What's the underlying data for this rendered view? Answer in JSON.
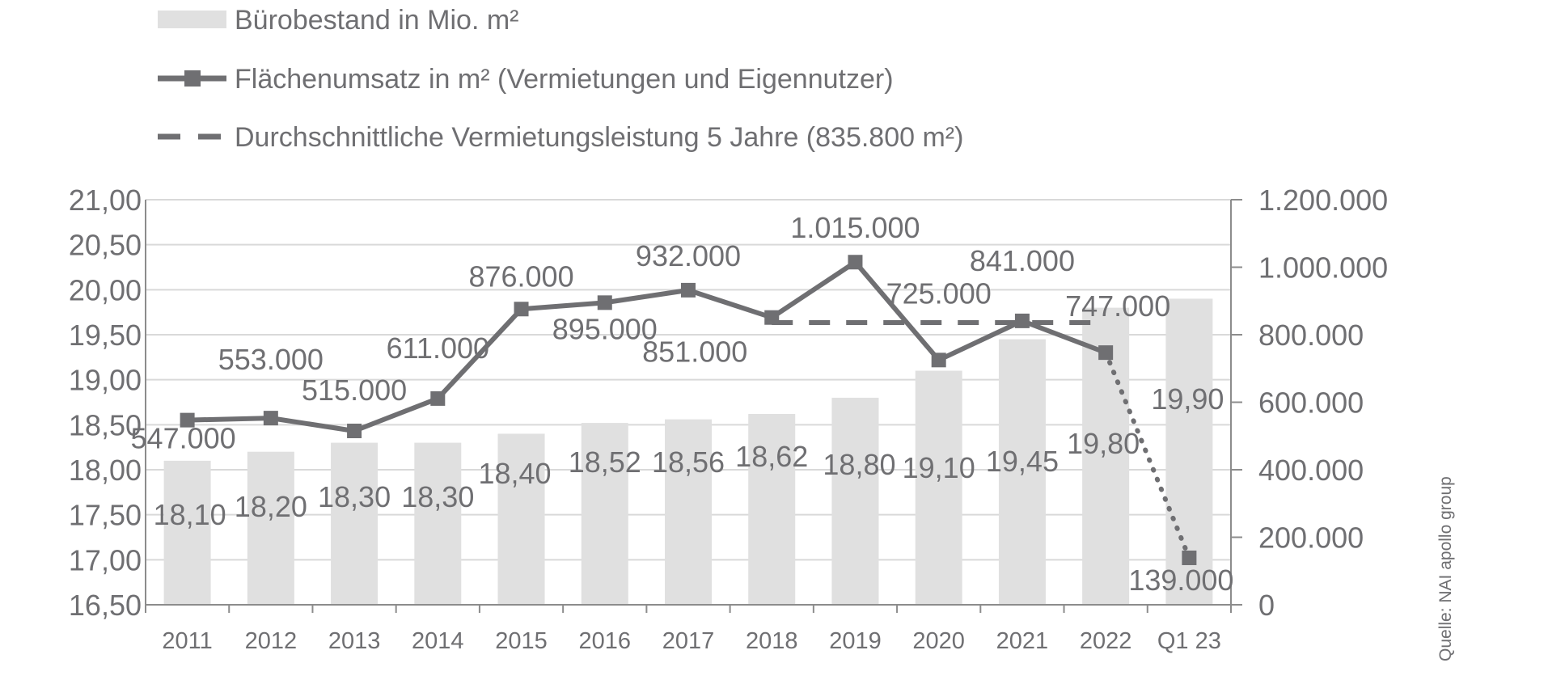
{
  "chart_data": {
    "type": "bar-line-combo",
    "categories": [
      "2011",
      "2012",
      "2013",
      "2014",
      "2015",
      "2016",
      "2017",
      "2018",
      "2019",
      "2020",
      "2021",
      "2022",
      "Q1 23"
    ],
    "bars": {
      "name": "Bürobestand in Mio. m²",
      "axis": "left",
      "values": [
        18.1,
        18.2,
        18.3,
        18.3,
        18.4,
        18.52,
        18.56,
        18.62,
        18.8,
        19.1,
        19.45,
        19.8,
        19.9
      ],
      "labels": [
        "18,10",
        "18,20",
        "18,30",
        "18,30",
        "18,40",
        "18,52",
        "18,56",
        "18,62",
        "18,80",
        "19,10",
        "19,45",
        "19,80",
        "19,90"
      ]
    },
    "line": {
      "name": "Flächenumsatz in m² (Vermietungen und Eigennutzer)",
      "axis": "right",
      "values": [
        547000,
        553000,
        515000,
        611000,
        876000,
        895000,
        932000,
        851000,
        1015000,
        725000,
        841000,
        747000,
        139000
      ],
      "labels": [
        "547.000",
        "553.000",
        "515.000",
        "611.000",
        "876.000",
        "895.000",
        "932.000",
        "851.000",
        "1.015.000",
        "725.000",
        "841.000",
        "747.000",
        "139.000"
      ],
      "last_segment_style": "dotted"
    },
    "average": {
      "name": "Durchschnittliche Vermietungsleistung 5 Jahre (835.800 m²)",
      "axis": "right",
      "value": 835800,
      "from_category": "2018",
      "to_category": "2022",
      "style": "dashed"
    },
    "y_left": {
      "min": 16.5,
      "max": 21.0,
      "step": 0.5,
      "tick_labels": [
        "16,50",
        "17,00",
        "17,50",
        "18,00",
        "18,50",
        "19,00",
        "19,50",
        "20,00",
        "20,50",
        "21,00"
      ]
    },
    "y_right": {
      "min": 0,
      "max": 1200000,
      "step": 200000,
      "tick_labels": [
        "0",
        "200.000",
        "400.000",
        "600.000",
        "800.000",
        "1.000.000",
        "1.200.000"
      ]
    },
    "grid": true,
    "legend_position": "top-left",
    "source": "Quelle: NAI apollo group"
  },
  "colors": {
    "bar": "#e0e0e0",
    "line": "#6f6f72",
    "grid": "#d9d9d9",
    "axis": "#8c8c8c",
    "text": "#6f6f72"
  }
}
